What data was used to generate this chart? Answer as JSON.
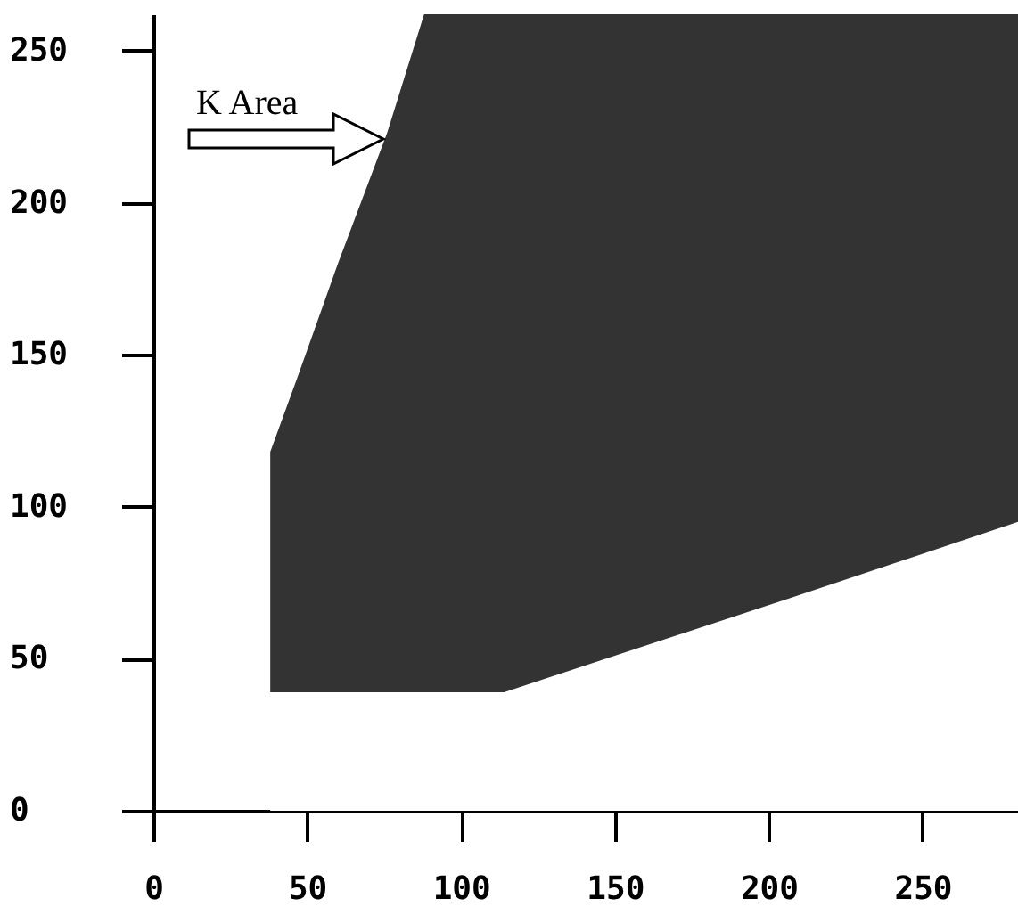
{
  "chart_data": {
    "type": "area",
    "stacked": true,
    "x": [
      38,
      47,
      60,
      76,
      88,
      114,
      207,
      281
    ],
    "series": [
      {
        "color": "#ffffff",
        "values": [
          39,
          39,
          39,
          39,
          39,
          39,
          70,
          95
        ]
      },
      {
        "color": "#333333",
        "values": [
          79,
          104,
          141,
          184,
          223,
          223,
          192,
          167
        ]
      }
    ],
    "xlim": [
      0,
      281
    ],
    "ylim": [
      0,
      262
    ],
    "xticks": [
      0,
      50,
      100,
      150,
      200,
      250
    ],
    "yticks": [
      0,
      50,
      100,
      150,
      200,
      250
    ],
    "annotations": [
      {
        "text": "K Area",
        "x": 76,
        "y": 221
      }
    ],
    "grid": false
  }
}
